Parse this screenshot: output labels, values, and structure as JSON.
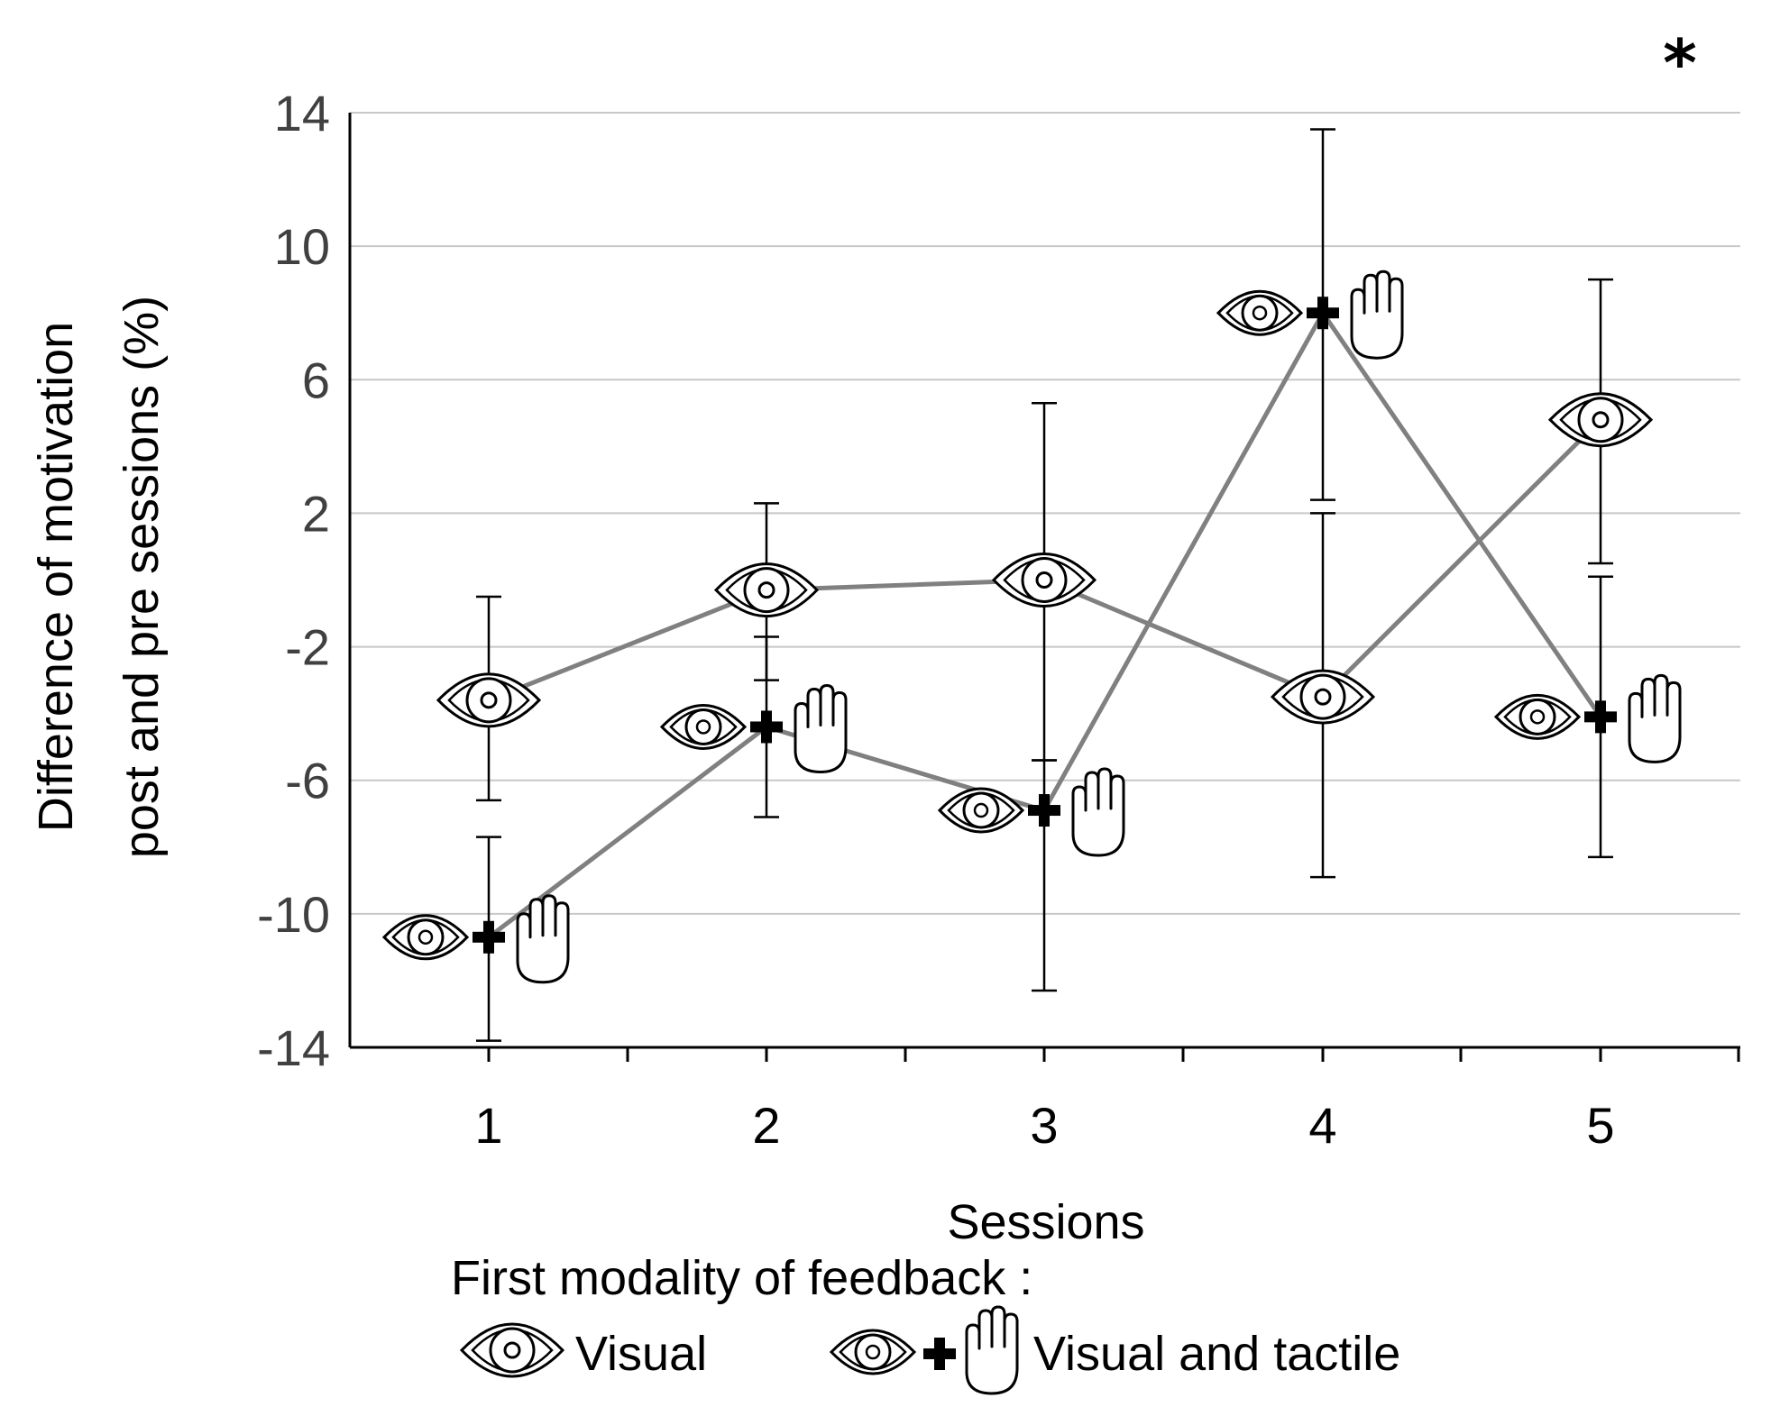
{
  "chart_data": {
    "type": "line",
    "title": "",
    "xlabel": "Sessions",
    "ylabel": "Difference of motivation post and pre sessions (%)",
    "ylabel_lines": [
      "Difference of motivation",
      "post and pre sessions (%)"
    ],
    "categories": [
      "1",
      "2",
      "3",
      "4",
      "5"
    ],
    "ylim": [
      -14,
      14
    ],
    "yticks": [
      "14",
      "10",
      "6",
      "2",
      "-2",
      "-6",
      "-10",
      "-14"
    ],
    "ytick_values": [
      14,
      10,
      6,
      2,
      -2,
      -6,
      -10,
      -14
    ],
    "grid": true,
    "significance_marker": "*",
    "series": [
      {
        "name": "Visual",
        "marker": "eye-icon",
        "values": [
          -3.6,
          -0.3,
          0.0,
          -3.5,
          4.8
        ],
        "error_low": [
          -6.6,
          -3.0,
          -5.4,
          -8.9,
          0.5
        ],
        "error_high": [
          -0.5,
          2.3,
          5.3,
          2.0,
          9.0
        ]
      },
      {
        "name": "Visual and tactile",
        "marker": "eye-plus-hand-icon",
        "values": [
          -10.7,
          -4.4,
          -6.9,
          8.0,
          -4.1
        ],
        "error_low": [
          -13.8,
          -7.1,
          -12.3,
          2.4,
          -8.3
        ],
        "error_high": [
          -7.7,
          -1.7,
          -5.4,
          13.5,
          0.1
        ]
      }
    ],
    "legend": {
      "title": "First modality of feedback :",
      "entries": [
        "Visual",
        "Visual and tactile"
      ],
      "placement": "bottom"
    },
    "colors": {
      "line": "#808080",
      "error": "#000000",
      "grid": "#c8c8c8",
      "axis": "#000000"
    }
  }
}
